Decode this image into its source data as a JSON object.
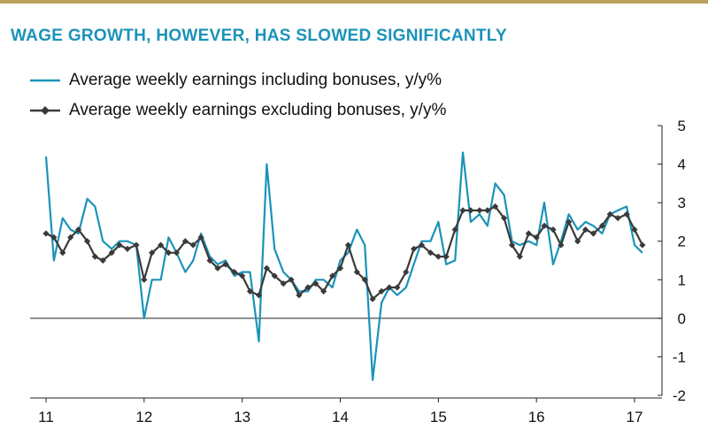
{
  "colors": {
    "accent": "#1b93b8",
    "series_incl": "#1b93b8",
    "series_excl": "#3a3a3a",
    "rule": "#b9a25a"
  },
  "chart_data": {
    "type": "line",
    "title": "WAGE GROWTH, HOWEVER, HAS SLOWED SIGNIFICANTLY",
    "xlabel": "",
    "ylabel": "",
    "ylim": [
      -2,
      5
    ],
    "yticks": [
      "-2",
      "-1",
      "0",
      "1",
      "2",
      "3",
      "4",
      "5"
    ],
    "y_axis_side": "right",
    "grid": false,
    "zero_line": true,
    "legend_position": "top-left",
    "x_range": [
      2011.0,
      2017.0
    ],
    "xticks": [
      {
        "value": 2011,
        "label": "11"
      },
      {
        "value": 2012,
        "label": "12"
      },
      {
        "value": 2013,
        "label": "13"
      },
      {
        "value": 2014,
        "label": "14"
      },
      {
        "value": 2015,
        "label": "15"
      },
      {
        "value": 2016,
        "label": "16"
      },
      {
        "value": 2017,
        "label": "17"
      }
    ],
    "series": [
      {
        "name": "Average weekly earnings including bonuses, y/y%",
        "marker": "none",
        "points": [
          [
            2011.0,
            4.2
          ],
          [
            2011.08,
            1.5
          ],
          [
            2011.17,
            2.6
          ],
          [
            2011.25,
            2.3
          ],
          [
            2011.33,
            2.2
          ],
          [
            2011.42,
            3.1
          ],
          [
            2011.5,
            2.9
          ],
          [
            2011.58,
            2.0
          ],
          [
            2011.67,
            1.8
          ],
          [
            2011.75,
            2.0
          ],
          [
            2011.83,
            2.0
          ],
          [
            2011.92,
            1.9
          ],
          [
            2012.0,
            0.0
          ],
          [
            2012.08,
            1.0
          ],
          [
            2012.17,
            1.0
          ],
          [
            2012.25,
            2.1
          ],
          [
            2012.33,
            1.7
          ],
          [
            2012.42,
            1.2
          ],
          [
            2012.5,
            1.5
          ],
          [
            2012.58,
            2.2
          ],
          [
            2012.67,
            1.6
          ],
          [
            2012.75,
            1.4
          ],
          [
            2012.83,
            1.5
          ],
          [
            2012.92,
            1.1
          ],
          [
            2013.0,
            1.2
          ],
          [
            2013.08,
            1.2
          ],
          [
            2013.17,
            -0.6
          ],
          [
            2013.25,
            4.0
          ],
          [
            2013.33,
            1.8
          ],
          [
            2013.42,
            1.2
          ],
          [
            2013.5,
            1.0
          ],
          [
            2013.58,
            0.7
          ],
          [
            2013.67,
            0.7
          ],
          [
            2013.75,
            1.0
          ],
          [
            2013.83,
            1.0
          ],
          [
            2013.92,
            0.8
          ],
          [
            2014.0,
            1.5
          ],
          [
            2014.08,
            1.7
          ],
          [
            2014.17,
            2.3
          ],
          [
            2014.25,
            1.9
          ],
          [
            2014.33,
            -1.6
          ],
          [
            2014.42,
            0.4
          ],
          [
            2014.5,
            0.8
          ],
          [
            2014.58,
            0.6
          ],
          [
            2014.67,
            0.8
          ],
          [
            2014.75,
            1.4
          ],
          [
            2014.83,
            2.0
          ],
          [
            2014.92,
            2.0
          ],
          [
            2015.0,
            2.5
          ],
          [
            2015.08,
            1.4
          ],
          [
            2015.17,
            1.5
          ],
          [
            2015.25,
            4.3
          ],
          [
            2015.33,
            2.5
          ],
          [
            2015.42,
            2.7
          ],
          [
            2015.5,
            2.4
          ],
          [
            2015.58,
            3.5
          ],
          [
            2015.67,
            3.2
          ],
          [
            2015.75,
            2.0
          ],
          [
            2015.83,
            1.9
          ],
          [
            2015.92,
            2.0
          ],
          [
            2016.0,
            1.9
          ],
          [
            2016.08,
            3.0
          ],
          [
            2016.17,
            1.4
          ],
          [
            2016.25,
            2.0
          ],
          [
            2016.33,
            2.7
          ],
          [
            2016.42,
            2.3
          ],
          [
            2016.5,
            2.5
          ],
          [
            2016.58,
            2.4
          ],
          [
            2016.67,
            2.2
          ],
          [
            2016.75,
            2.7
          ],
          [
            2016.83,
            2.8
          ],
          [
            2016.92,
            2.9
          ],
          [
            2017.0,
            1.9
          ],
          [
            2017.08,
            1.7
          ]
        ]
      },
      {
        "name": "Average weekly earnings excluding bonuses, y/y%",
        "marker": "diamond",
        "points": [
          [
            2011.0,
            2.2
          ],
          [
            2011.08,
            2.1
          ],
          [
            2011.17,
            1.7
          ],
          [
            2011.25,
            2.1
          ],
          [
            2011.33,
            2.3
          ],
          [
            2011.42,
            2.0
          ],
          [
            2011.5,
            1.6
          ],
          [
            2011.58,
            1.5
          ],
          [
            2011.67,
            1.7
          ],
          [
            2011.75,
            1.9
          ],
          [
            2011.83,
            1.8
          ],
          [
            2011.92,
            1.9
          ],
          [
            2012.0,
            1.0
          ],
          [
            2012.08,
            1.7
          ],
          [
            2012.17,
            1.9
          ],
          [
            2012.25,
            1.7
          ],
          [
            2012.33,
            1.7
          ],
          [
            2012.42,
            2.0
          ],
          [
            2012.5,
            1.9
          ],
          [
            2012.58,
            2.1
          ],
          [
            2012.67,
            1.5
          ],
          [
            2012.75,
            1.3
          ],
          [
            2012.83,
            1.4
          ],
          [
            2012.92,
            1.2
          ],
          [
            2013.0,
            1.1
          ],
          [
            2013.08,
            0.7
          ],
          [
            2013.17,
            0.6
          ],
          [
            2013.25,
            1.3
          ],
          [
            2013.33,
            1.1
          ],
          [
            2013.42,
            0.9
          ],
          [
            2013.5,
            1.0
          ],
          [
            2013.58,
            0.6
          ],
          [
            2013.67,
            0.8
          ],
          [
            2013.75,
            0.9
          ],
          [
            2013.83,
            0.7
          ],
          [
            2013.92,
            1.1
          ],
          [
            2014.0,
            1.3
          ],
          [
            2014.08,
            1.9
          ],
          [
            2014.17,
            1.2
          ],
          [
            2014.25,
            1.0
          ],
          [
            2014.33,
            0.5
          ],
          [
            2014.42,
            0.7
          ],
          [
            2014.5,
            0.8
          ],
          [
            2014.58,
            0.8
          ],
          [
            2014.67,
            1.2
          ],
          [
            2014.75,
            1.8
          ],
          [
            2014.83,
            1.9
          ],
          [
            2014.92,
            1.7
          ],
          [
            2015.0,
            1.6
          ],
          [
            2015.08,
            1.6
          ],
          [
            2015.17,
            2.3
          ],
          [
            2015.25,
            2.8
          ],
          [
            2015.33,
            2.8
          ],
          [
            2015.42,
            2.8
          ],
          [
            2015.5,
            2.8
          ],
          [
            2015.58,
            2.9
          ],
          [
            2015.67,
            2.6
          ],
          [
            2015.75,
            1.9
          ],
          [
            2015.83,
            1.6
          ],
          [
            2015.92,
            2.2
          ],
          [
            2016.0,
            2.1
          ],
          [
            2016.08,
            2.4
          ],
          [
            2016.17,
            2.3
          ],
          [
            2016.25,
            1.9
          ],
          [
            2016.33,
            2.5
          ],
          [
            2016.42,
            2.0
          ],
          [
            2016.5,
            2.3
          ],
          [
            2016.58,
            2.2
          ],
          [
            2016.67,
            2.4
          ],
          [
            2016.75,
            2.7
          ],
          [
            2016.83,
            2.6
          ],
          [
            2016.92,
            2.7
          ],
          [
            2017.0,
            2.3
          ],
          [
            2017.08,
            1.9
          ]
        ]
      }
    ]
  }
}
